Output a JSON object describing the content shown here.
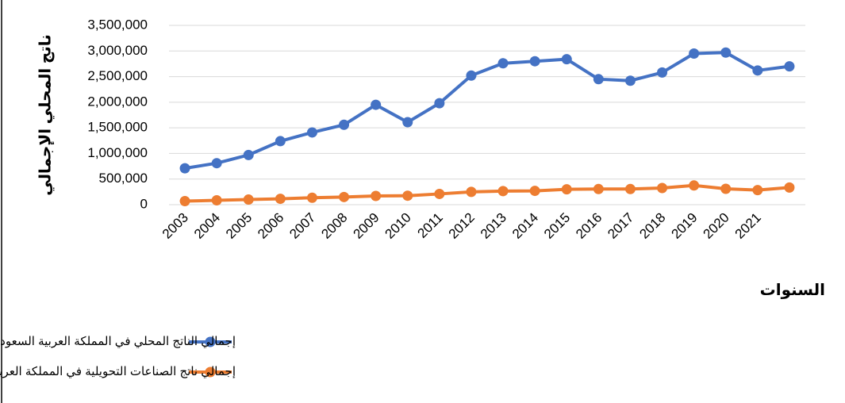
{
  "chart_data": {
    "type": "line",
    "y_label": "ناتج المحلي الإجمالي",
    "x_label": "السنوات",
    "categories": [
      "2003",
      "2004",
      "2005",
      "2006",
      "2007",
      "2008",
      "2009",
      "2010",
      "2011",
      "2012",
      "2013",
      "2014",
      "2015",
      "2016",
      "2017",
      "2018",
      "2019",
      "2020",
      "2021",
      null
    ],
    "series": [
      {
        "name": "إجمالي الناتج المحلي في المملكة العربية السعودية (مليون ريال)",
        "color": "#4472c4",
        "values": [
          710000,
          810000,
          970000,
          1240000,
          1410000,
          1560000,
          1950000,
          1610000,
          1980000,
          2520000,
          2760000,
          2800000,
          2840000,
          2450000,
          2420000,
          2580000,
          2950000,
          2970000,
          2620000,
          2700000
        ]
      },
      {
        "name": "إجمالي ناتج الصناعات التحويلية في المملكة العربية السعودية (مليون ريال)",
        "color": "#ed7d31",
        "values": [
          70000,
          85000,
          100000,
          115000,
          135000,
          150000,
          170000,
          175000,
          210000,
          250000,
          265000,
          270000,
          300000,
          305000,
          305000,
          325000,
          375000,
          310000,
          285000,
          335000
        ]
      }
    ],
    "ylim": [
      0,
      3500000
    ],
    "yticks": [
      0,
      {
        "value": 500000,
        "label": "500,000"
      },
      {
        "value": 1000000,
        "label": "1,000,000"
      },
      {
        "value": 1500000,
        "label": "1,500,000"
      },
      {
        "value": 2000000,
        "label": "2,000,000"
      },
      {
        "value": 2500000,
        "label": "2,500,000"
      },
      {
        "value": 3000000,
        "label": "3,000,000"
      },
      {
        "value": 3500000,
        "label": "3,500,000"
      }
    ],
    "grid": true
  }
}
